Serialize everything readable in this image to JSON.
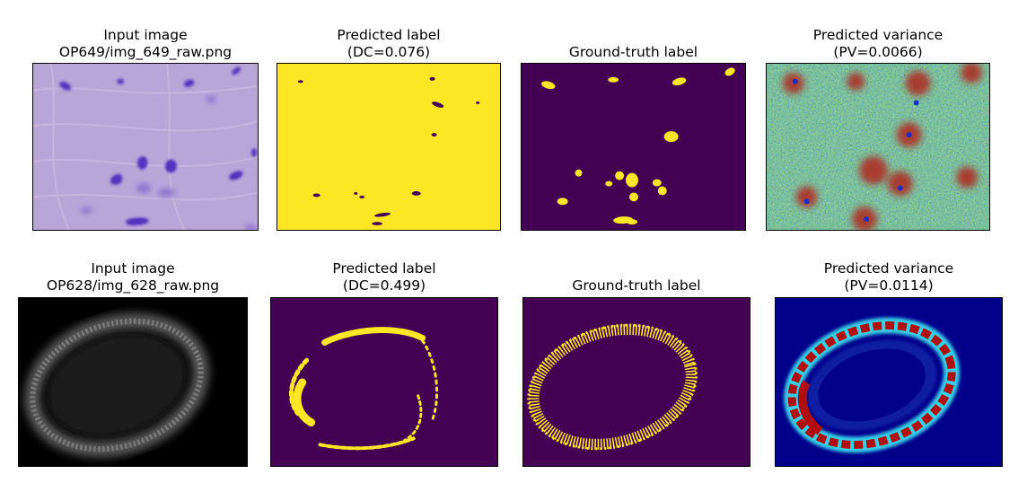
{
  "rows": [
    {
      "input": {
        "title1": "Input image",
        "title2": "OP649/img_649_raw.png"
      },
      "pred": {
        "title1": "Predicted label",
        "title2": "(DC=0.076)"
      },
      "gt": {
        "title1": "Ground-truth label",
        "title2": ""
      },
      "var": {
        "title1": "Predicted variance",
        "title2": "(PV=0.0066)"
      }
    },
    {
      "input": {
        "title1": "Input image",
        "title2": "OP628/img_628_raw.png"
      },
      "pred": {
        "title1": "Predicted label",
        "title2": "(DC=0.499)"
      },
      "gt": {
        "title1": "Ground-truth label",
        "title2": ""
      },
      "var": {
        "title1": "Predicted variance",
        "title2": "(PV=0.0114)"
      }
    }
  ],
  "colors": {
    "viridis_dark": "#440154",
    "viridis_yellow": "#fde725",
    "jet_blue": "#00008b",
    "jet_cyan": "#35d0e8",
    "jet_red": "#b10d0d",
    "stain_bg": "#b7a3d6",
    "stain_nucleus": "#5a2fbf"
  }
}
